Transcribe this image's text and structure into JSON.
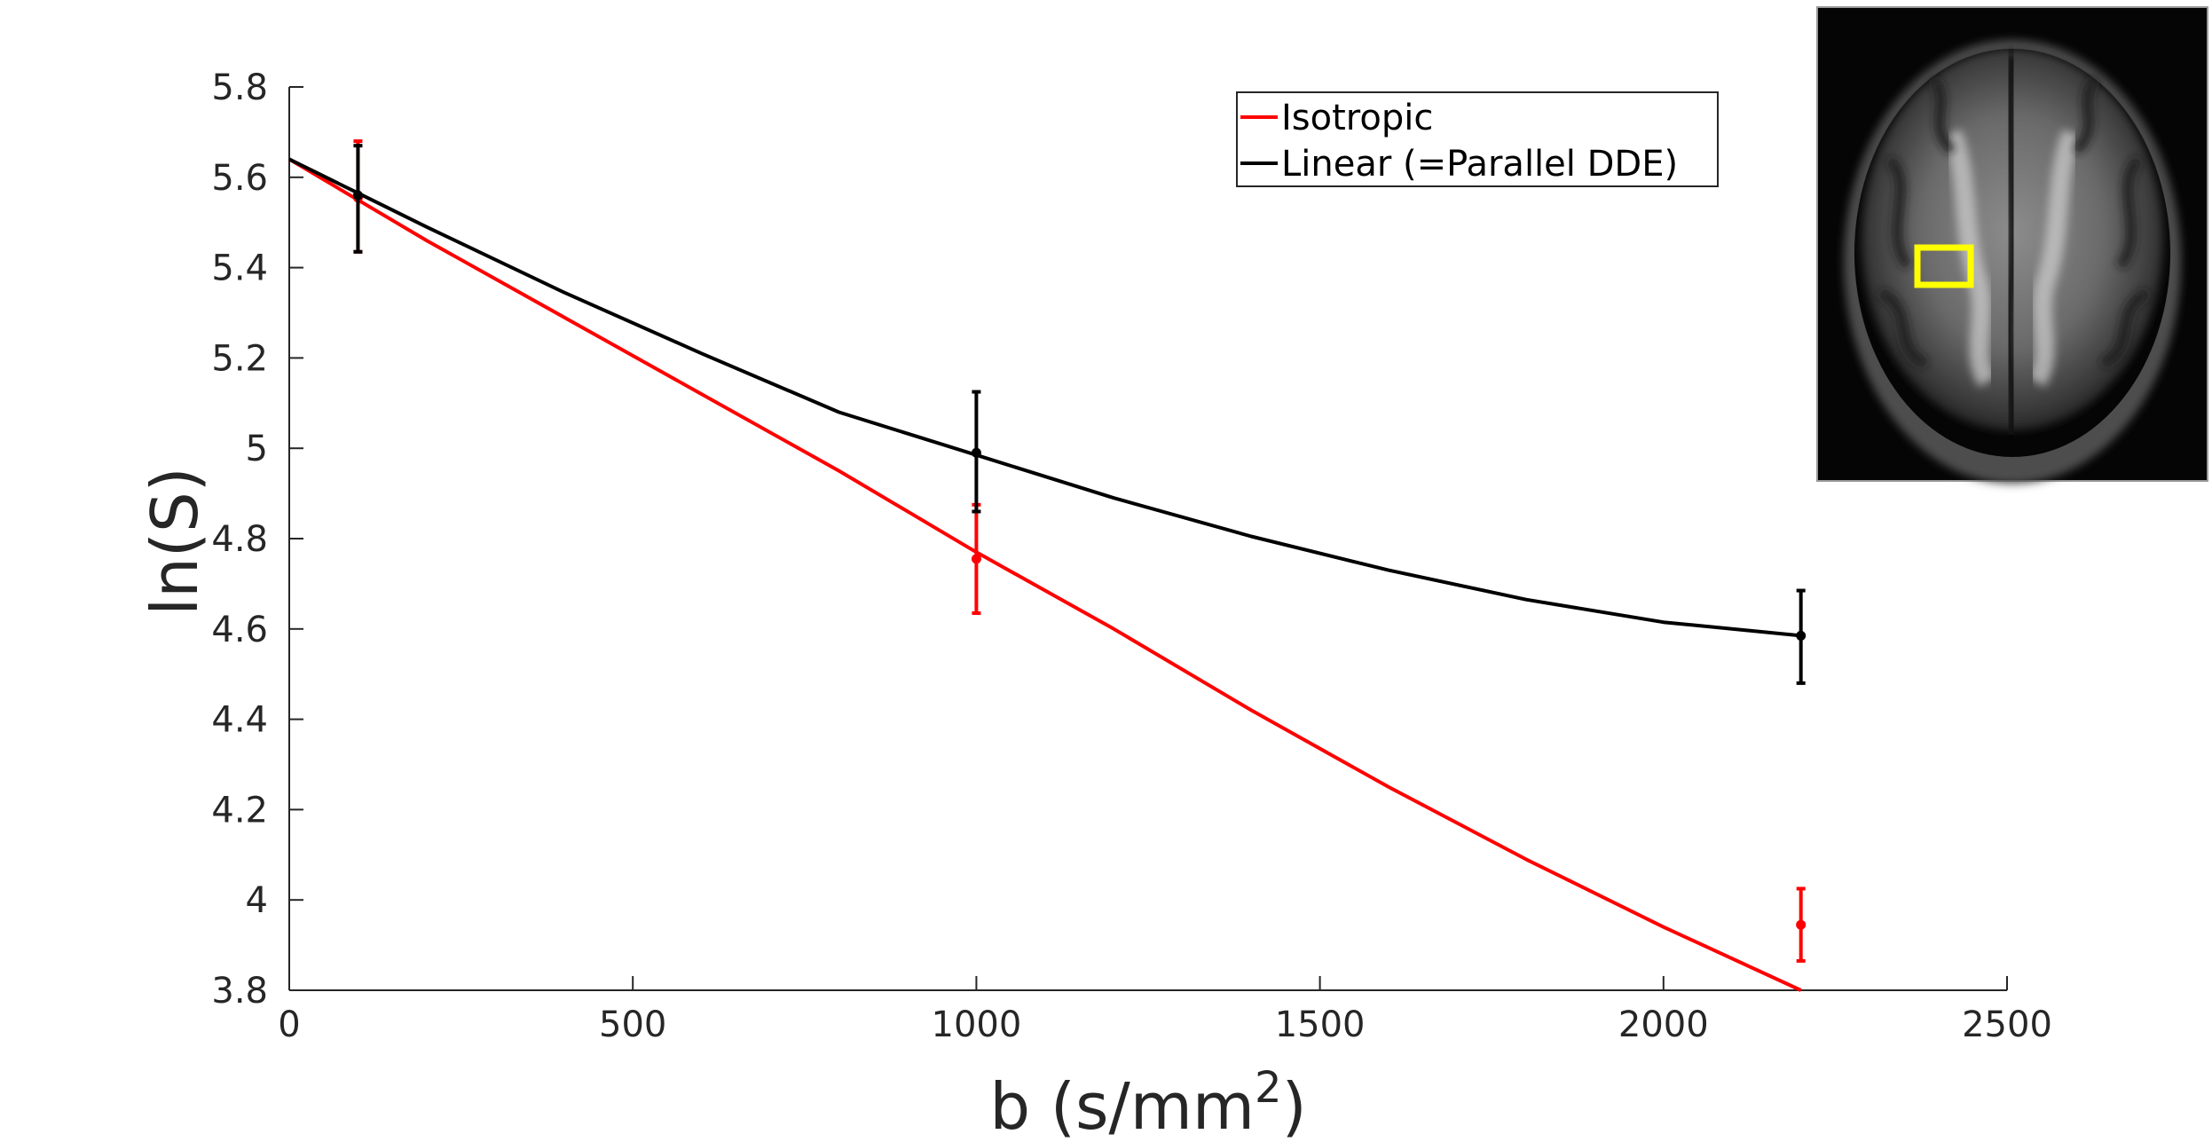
{
  "chart_data": {
    "type": "line",
    "xlabel": "b (s/mm",
    "xlabel_superscript": "2",
    "xlabel_suffix": ")",
    "ylabel": "ln(S)",
    "xlim": [
      0,
      2500
    ],
    "ylim": [
      3.8,
      5.8
    ],
    "x_ticks": [
      "0",
      "500",
      "1000",
      "1500",
      "2000",
      "2500"
    ],
    "y_ticks": [
      "3.8",
      "4",
      "4.2",
      "4.4",
      "4.6",
      "4.8",
      "5",
      "5.2",
      "5.4",
      "5.6",
      "5.8"
    ],
    "grid": false,
    "legend_position": "top-right",
    "series": [
      {
        "name": "Isotropic",
        "color": "#ff0000",
        "fit_curve": {
          "x": [
            0,
            100,
            200,
            400,
            600,
            800,
            1000,
            1200,
            1400,
            1600,
            1800,
            2000,
            2200
          ],
          "y": [
            5.64,
            5.55,
            5.46,
            5.29,
            5.12,
            4.95,
            4.77,
            4.6,
            4.42,
            4.25,
            4.09,
            3.94,
            3.8
          ]
        },
        "points": [
          {
            "x": 100,
            "y": 5.555,
            "err_low": 5.435,
            "err_high": 5.68
          },
          {
            "x": 1000,
            "y": 4.755,
            "err_low": 4.635,
            "err_high": 4.875
          },
          {
            "x": 2200,
            "y": 3.945,
            "err_low": 3.865,
            "err_high": 4.025
          }
        ]
      },
      {
        "name": "Linear (=Parallel DDE)",
        "color": "#000000",
        "fit_curve": {
          "x": [
            0,
            100,
            200,
            400,
            600,
            800,
            1000,
            1200,
            1400,
            1600,
            1800,
            2000,
            2200
          ],
          "y": [
            5.64,
            5.565,
            5.49,
            5.345,
            5.21,
            5.08,
            4.985,
            4.89,
            4.805,
            4.73,
            4.665,
            4.615,
            4.585
          ]
        },
        "points": [
          {
            "x": 100,
            "y": 5.56,
            "err_low": 5.435,
            "err_high": 5.67
          },
          {
            "x": 1000,
            "y": 4.99,
            "err_low": 4.86,
            "err_high": 5.125
          },
          {
            "x": 2200,
            "y": 4.585,
            "err_low": 4.48,
            "err_high": 4.685
          }
        ]
      }
    ]
  },
  "inset": {
    "description_icon": "brain-mri-axial-slice",
    "roi_color": "#ffff00"
  }
}
